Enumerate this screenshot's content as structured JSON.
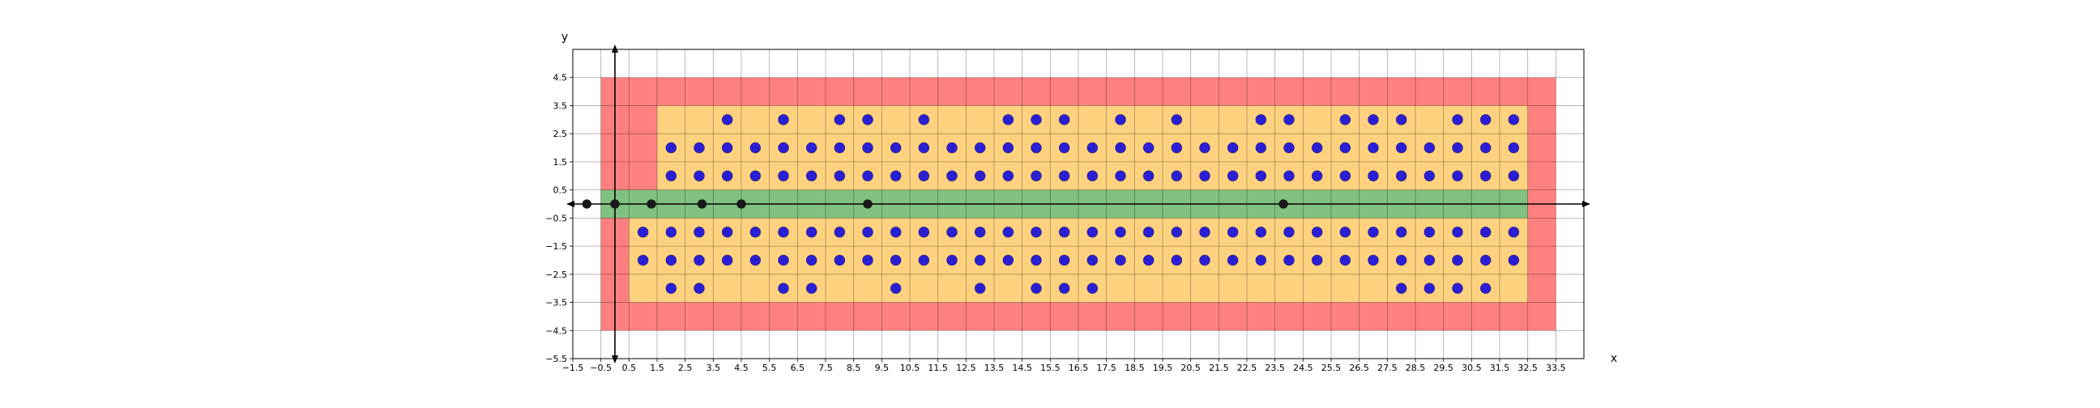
{
  "chart_data": {
    "type": "scatter",
    "title": "",
    "xlabel": "x",
    "ylabel": "y",
    "xlim": [
      -1.5,
      34.5
    ],
    "ylim": [
      -5.5,
      5.5
    ],
    "grid": true,
    "x_ticks": [
      "−1.5",
      "−0.5",
      "0.5",
      "1.5",
      "2.5",
      "3.5",
      "4.5",
      "5.5",
      "6.5",
      "7.5",
      "8.5",
      "9.5",
      "10.5",
      "11.5",
      "12.5",
      "13.5",
      "14.5",
      "15.5",
      "16.5",
      "17.5",
      "18.5",
      "19.5",
      "20.5",
      "21.5",
      "22.5",
      "23.5",
      "24.5",
      "25.5",
      "26.5",
      "27.5",
      "28.5",
      "29.5",
      "30.5",
      "31.5",
      "32.5",
      "33.5"
    ],
    "y_ticks": [
      "4.5",
      "3.5",
      "2.5",
      "1.5",
      "0.5",
      "−0.5",
      "−1.5",
      "−2.5",
      "−3.5",
      "−4.5",
      "−5.5"
    ],
    "regions": [
      {
        "color": "#ff8080",
        "x": [
          -0.5,
          33.5
        ],
        "y": [
          -4.5,
          4.5
        ]
      },
      {
        "color": "#ffd280",
        "x": [
          0.5,
          32.5
        ],
        "y": [
          -3.5,
          -0.5
        ]
      },
      {
        "color": "#ffd280",
        "x": [
          1.5,
          32.5
        ],
        "y": [
          0.5,
          3.5
        ]
      },
      {
        "color": "#80c080",
        "x": [
          -0.5,
          32.5
        ],
        "y": [
          -0.5,
          0.5
        ]
      }
    ],
    "series": [
      {
        "color": "#2b1fd6",
        "points": [
          [
            1,
            -1
          ],
          [
            1,
            -2
          ],
          [
            2,
            -1
          ],
          [
            2,
            -2
          ],
          [
            2,
            -3
          ],
          [
            3,
            -1
          ],
          [
            3,
            -2
          ],
          [
            3,
            -3
          ],
          [
            4,
            -1
          ],
          [
            4,
            -2
          ],
          [
            5,
            -1
          ],
          [
            5,
            -2
          ],
          [
            6,
            -1
          ],
          [
            6,
            -2
          ],
          [
            6,
            -3
          ],
          [
            7,
            -1
          ],
          [
            7,
            -2
          ],
          [
            7,
            -3
          ],
          [
            8,
            -1
          ],
          [
            8,
            -2
          ],
          [
            9,
            -1
          ],
          [
            9,
            -2
          ],
          [
            10,
            -1
          ],
          [
            10,
            -2
          ],
          [
            10,
            -3
          ],
          [
            11,
            -1
          ],
          [
            11,
            -2
          ],
          [
            12,
            -1
          ],
          [
            12,
            -2
          ],
          [
            13,
            -1
          ],
          [
            13,
            -2
          ],
          [
            13,
            -3
          ],
          [
            14,
            -1
          ],
          [
            14,
            -2
          ],
          [
            15,
            -1
          ],
          [
            15,
            -2
          ],
          [
            15,
            -3
          ],
          [
            16,
            -1
          ],
          [
            16,
            -2
          ],
          [
            16,
            -3
          ],
          [
            17,
            -1
          ],
          [
            17,
            -2
          ],
          [
            17,
            -3
          ],
          [
            18,
            -1
          ],
          [
            18,
            -2
          ],
          [
            19,
            -1
          ],
          [
            19,
            -2
          ],
          [
            20,
            -1
          ],
          [
            20,
            -2
          ],
          [
            21,
            -1
          ],
          [
            21,
            -2
          ],
          [
            22,
            -1
          ],
          [
            22,
            -2
          ],
          [
            23,
            -1
          ],
          [
            23,
            -2
          ],
          [
            24,
            -1
          ],
          [
            24,
            -2
          ],
          [
            25,
            -1
          ],
          [
            25,
            -2
          ],
          [
            26,
            -1
          ],
          [
            26,
            -2
          ],
          [
            27,
            -1
          ],
          [
            27,
            -2
          ],
          [
            28,
            -1
          ],
          [
            28,
            -2
          ],
          [
            28,
            -3
          ],
          [
            29,
            -1
          ],
          [
            29,
            -2
          ],
          [
            29,
            -3
          ],
          [
            30,
            -1
          ],
          [
            30,
            -2
          ],
          [
            30,
            -3
          ],
          [
            31,
            -1
          ],
          [
            31,
            -2
          ],
          [
            31,
            -3
          ],
          [
            32,
            -1
          ],
          [
            32,
            -2
          ],
          [
            2,
            1
          ],
          [
            2,
            2
          ],
          [
            3,
            1
          ],
          [
            3,
            2
          ],
          [
            4,
            1
          ],
          [
            4,
            2
          ],
          [
            4,
            3
          ],
          [
            5,
            1
          ],
          [
            5,
            2
          ],
          [
            6,
            1
          ],
          [
            6,
            2
          ],
          [
            6,
            3
          ],
          [
            7,
            1
          ],
          [
            7,
            2
          ],
          [
            8,
            1
          ],
          [
            8,
            2
          ],
          [
            8,
            3
          ],
          [
            9,
            1
          ],
          [
            9,
            2
          ],
          [
            9,
            3
          ],
          [
            10,
            1
          ],
          [
            10,
            2
          ],
          [
            11,
            1
          ],
          [
            11,
            2
          ],
          [
            11,
            3
          ],
          [
            12,
            1
          ],
          [
            12,
            2
          ],
          [
            13,
            1
          ],
          [
            13,
            2
          ],
          [
            14,
            1
          ],
          [
            14,
            2
          ],
          [
            14,
            3
          ],
          [
            15,
            1
          ],
          [
            15,
            2
          ],
          [
            15,
            3
          ],
          [
            16,
            1
          ],
          [
            16,
            2
          ],
          [
            16,
            3
          ],
          [
            17,
            1
          ],
          [
            17,
            2
          ],
          [
            18,
            1
          ],
          [
            18,
            2
          ],
          [
            18,
            3
          ],
          [
            19,
            1
          ],
          [
            19,
            2
          ],
          [
            20,
            1
          ],
          [
            20,
            2
          ],
          [
            20,
            3
          ],
          [
            21,
            1
          ],
          [
            21,
            2
          ],
          [
            22,
            1
          ],
          [
            22,
            2
          ],
          [
            23,
            1
          ],
          [
            23,
            2
          ],
          [
            23,
            3
          ],
          [
            24,
            1
          ],
          [
            24,
            2
          ],
          [
            24,
            3
          ],
          [
            25,
            1
          ],
          [
            25,
            2
          ],
          [
            26,
            1
          ],
          [
            26,
            2
          ],
          [
            26,
            3
          ],
          [
            27,
            1
          ],
          [
            27,
            2
          ],
          [
            27,
            3
          ],
          [
            28,
            1
          ],
          [
            28,
            2
          ],
          [
            28,
            3
          ],
          [
            29,
            1
          ],
          [
            29,
            2
          ],
          [
            30,
            1
          ],
          [
            30,
            2
          ],
          [
            30,
            3
          ],
          [
            31,
            1
          ],
          [
            31,
            2
          ],
          [
            31,
            3
          ],
          [
            32,
            1
          ],
          [
            32,
            2
          ],
          [
            32,
            3
          ]
        ]
      },
      {
        "color": "#1a1a1a",
        "points": [
          [
            -1,
            0
          ],
          [
            0,
            0
          ],
          [
            1.3,
            0
          ],
          [
            3.1,
            0
          ],
          [
            4.5,
            0
          ],
          [
            9,
            0
          ],
          [
            23.8,
            0
          ]
        ]
      }
    ]
  }
}
